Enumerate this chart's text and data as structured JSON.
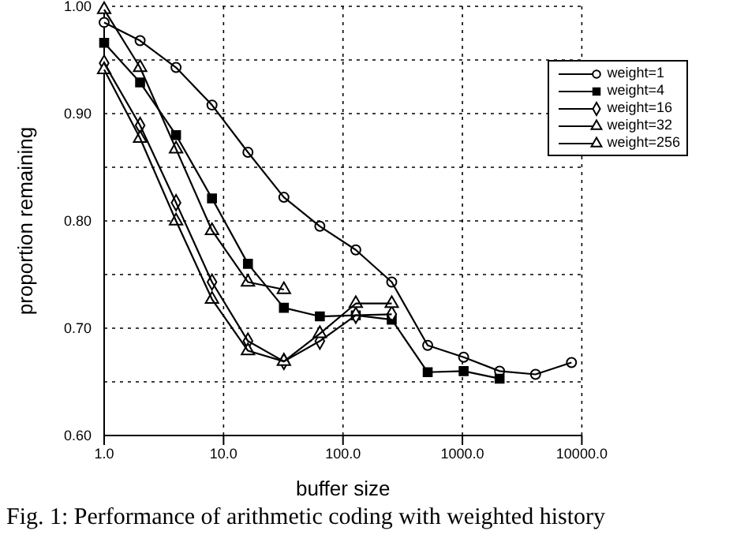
{
  "chart_data": {
    "type": "line",
    "xlabel": "buffer size",
    "ylabel": "proportion remaining",
    "annotations": [
      "Fig. 1: Performance of arithmetic coding with weighted history"
    ],
    "log": "x",
    "grid": true,
    "legend": "top right",
    "line_style": "solid",
    "xlim": [
      1,
      10000
    ],
    "xticks": [
      {
        "value": 1,
        "label": "1.0"
      },
      {
        "value": 10,
        "label": "10.0"
      },
      {
        "value": 100,
        "label": "100.0"
      },
      {
        "value": 1000,
        "label": "1000.0"
      },
      {
        "value": 10000,
        "label": "10000.0"
      }
    ],
    "ylim": [
      0.6,
      1.0
    ],
    "yticks": [
      {
        "value": 0.6,
        "label": "0.60"
      },
      {
        "value": 0.65,
        "label": null
      },
      {
        "value": 0.7,
        "label": "0.70"
      },
      {
        "value": 0.75,
        "label": null
      },
      {
        "value": 0.8,
        "label": "0.80"
      },
      {
        "value": 0.85,
        "label": null
      },
      {
        "value": 0.9,
        "label": "0.90"
      },
      {
        "value": 0.95,
        "label": null
      },
      {
        "value": 1.0,
        "label": "1.00"
      }
    ],
    "series": [
      {
        "name": "weight=1",
        "color": "#000000",
        "marker": "circle",
        "x": [
          1,
          2,
          4,
          8,
          16,
          32,
          64,
          128,
          256,
          512,
          1024,
          2048,
          4096,
          8192
        ],
        "values": [
          0.985,
          0.968,
          0.943,
          0.908,
          0.864,
          0.822,
          0.795,
          0.773,
          0.743,
          0.684,
          0.673,
          0.66,
          0.657,
          0.668
        ]
      },
      {
        "name": "weight=4",
        "color": "#000000",
        "marker": "square",
        "x": [
          1,
          2,
          4,
          8,
          16,
          32,
          64,
          128,
          256,
          512,
          1024,
          2048
        ],
        "values": [
          0.966,
          0.929,
          0.88,
          0.821,
          0.76,
          0.719,
          0.711,
          0.712,
          0.708,
          0.659,
          0.66,
          0.653
        ]
      },
      {
        "name": "weight=16",
        "color": "#000000",
        "marker": "diamond",
        "x": [
          1,
          2,
          4,
          8,
          16,
          32,
          64,
          128,
          256
        ],
        "values": [
          0.947,
          0.889,
          0.817,
          0.743,
          0.688,
          0.669,
          0.688,
          0.712,
          0.713
        ]
      },
      {
        "name": "weight=32",
        "color": "#000000",
        "marker": "triangle",
        "x": [
          1,
          2,
          4,
          8,
          16,
          32,
          64,
          128,
          256
        ],
        "values": [
          0.941,
          0.877,
          0.8,
          0.727,
          0.679,
          0.669,
          0.695,
          0.723,
          0.723
        ]
      },
      {
        "name": "weight=256",
        "color": "#000000",
        "marker": "triangle",
        "x": [
          1,
          2,
          4,
          8,
          16,
          32
        ],
        "values": [
          0.997,
          0.943,
          0.867,
          0.791,
          0.743,
          0.736
        ]
      }
    ]
  }
}
